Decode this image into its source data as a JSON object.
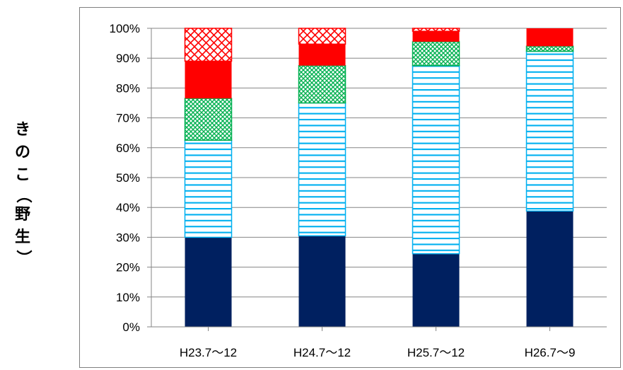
{
  "chart_data": {
    "type": "bar",
    "stacked": true,
    "percent": true,
    "ylabel": "きのこ（野生）",
    "ylim": [
      0,
      100
    ],
    "y_ticks": [
      "0%",
      "10%",
      "20%",
      "30%",
      "40%",
      "50%",
      "60%",
      "70%",
      "80%",
      "90%",
      "100%"
    ],
    "categories": [
      "H23.7～12",
      "H24.7～12",
      "H25.7～12",
      "H26.7～9"
    ],
    "grid": true,
    "series": [
      {
        "color": "#002060",
        "pattern": "solid",
        "values": [
          30,
          30.5,
          24.5,
          38.8
        ]
      },
      {
        "color": "#00b0f0",
        "pattern": "horizontal-stripes",
        "values": [
          32.5,
          44.5,
          63,
          53.5
        ]
      },
      {
        "color": "#00b050",
        "pattern": "dense-crosshatch",
        "values": [
          14,
          12.5,
          8,
          1.7
        ]
      },
      {
        "color": "#ff0000",
        "pattern": "solid",
        "values": [
          12.5,
          7.2,
          3.5,
          6
        ]
      },
      {
        "color": "#ff0000",
        "pattern": "crosshatch",
        "values": [
          11,
          5.3,
          1,
          0
        ]
      }
    ]
  }
}
